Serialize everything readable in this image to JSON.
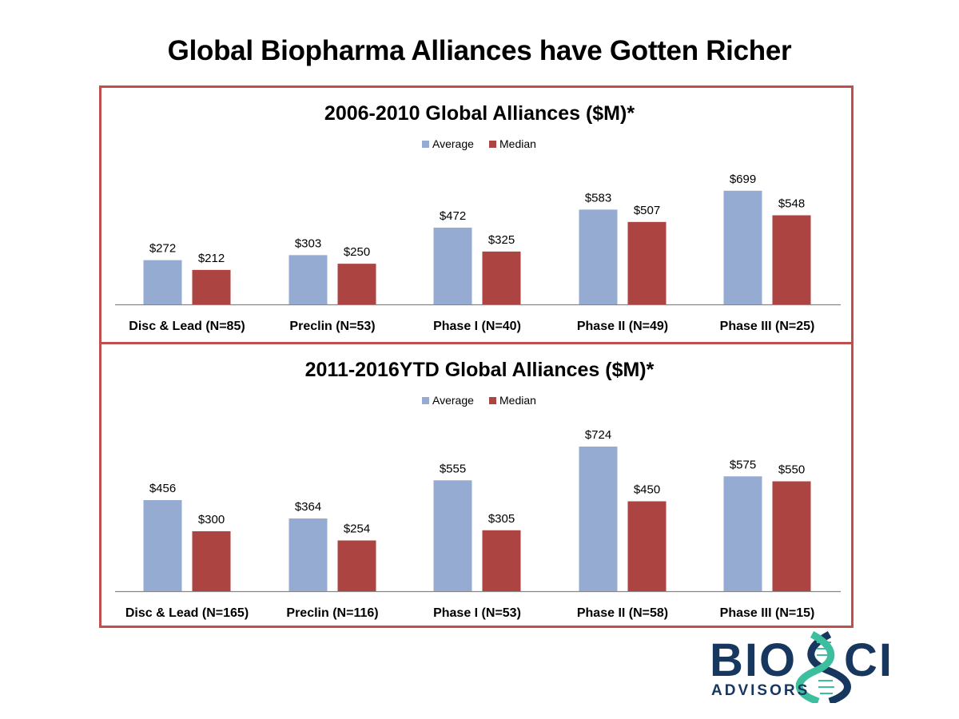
{
  "page": {
    "title": "Global Biopharma Alliances have Gotten Richer",
    "colors": {
      "frame": "#c0504d",
      "average": "#95abd1",
      "median": "#ac4442",
      "axis": "#868686"
    }
  },
  "logo": {
    "primary_text": "BIO",
    "secondary_text": "CI",
    "tagline": "ADVISORS",
    "brand_color": "#17375e",
    "accent_color": "#3dbf9f"
  },
  "chart_data": [
    {
      "type": "bar",
      "title": "2006-2010 Global Alliances ($M)*",
      "categories": [
        "Disc & Lead (N=85)",
        "Preclin (N=53)",
        "Phase I (N=40)",
        "Phase II (N=49)",
        "Phase III (N=25)"
      ],
      "series": [
        {
          "name": "Average",
          "color": "#95abd1",
          "values": [
            272,
            303,
            472,
            583,
            699
          ],
          "labels": [
            "$272",
            "$303",
            "$472",
            "$583",
            "$699"
          ]
        },
        {
          "name": "Median",
          "color": "#ac4442",
          "values": [
            212,
            250,
            325,
            507,
            548
          ],
          "labels": [
            "$212",
            "$250",
            "$325",
            "$507",
            "$548"
          ]
        }
      ],
      "legend": [
        "Average",
        "Median"
      ],
      "legend_position": "top",
      "xlabel": "",
      "ylabel": "",
      "ylim": [
        0,
        850
      ],
      "grid": false
    },
    {
      "type": "bar",
      "title": "2011-2016YTD Global Alliances ($M)*",
      "categories": [
        "Disc & Lead (N=165)",
        "Preclin (N=116)",
        "Phase I (N=53)",
        "Phase II (N=58)",
        "Phase III (N=15)"
      ],
      "series": [
        {
          "name": "Average",
          "color": "#95abd1",
          "values": [
            456,
            364,
            555,
            724,
            575
          ],
          "labels": [
            "$456",
            "$364",
            "$555",
            "$724",
            "$575"
          ]
        },
        {
          "name": "Median",
          "color": "#ac4442",
          "values": [
            300,
            254,
            305,
            450,
            550
          ],
          "labels": [
            "$300",
            "$254",
            "$305",
            "$450",
            "$550"
          ]
        }
      ],
      "legend": [
        "Average",
        "Median"
      ],
      "legend_position": "top",
      "xlabel": "",
      "ylabel": "",
      "ylim": [
        0,
        850
      ],
      "grid": false
    }
  ]
}
